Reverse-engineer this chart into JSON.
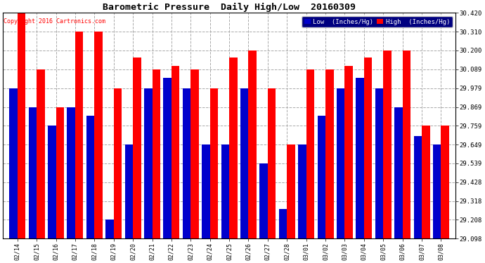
{
  "title": "Barometric Pressure  Daily High/Low  20160309",
  "copyright": "Copyright 2016 Cartronics.com",
  "label_low": "Low  (Inches/Hg)",
  "label_high": "High  (Inches/Hg)",
  "background_color": "#ffffff",
  "grid_color": "#aaaaaa",
  "ylim": [
    29.098,
    30.42
  ],
  "yticks": [
    29.098,
    29.208,
    29.318,
    29.428,
    29.539,
    29.649,
    29.759,
    29.869,
    29.979,
    30.089,
    30.2,
    30.31,
    30.42
  ],
  "dates": [
    "02/14",
    "02/15",
    "02/16",
    "02/17",
    "02/18",
    "02/19",
    "02/20",
    "02/21",
    "02/22",
    "02/23",
    "02/24",
    "02/25",
    "02/26",
    "02/27",
    "02/28",
    "03/01",
    "03/02",
    "03/03",
    "03/04",
    "03/05",
    "03/06",
    "03/07",
    "03/08"
  ],
  "high": [
    30.42,
    30.089,
    29.869,
    30.31,
    30.31,
    29.979,
    30.16,
    30.089,
    30.11,
    30.089,
    29.979,
    30.16,
    30.2,
    29.979,
    29.649,
    30.089,
    30.089,
    30.11,
    30.16,
    30.2,
    30.2,
    29.759,
    29.759
  ],
  "low": [
    29.979,
    29.869,
    29.759,
    29.869,
    29.819,
    29.208,
    29.649,
    29.979,
    30.04,
    29.979,
    29.649,
    29.649,
    29.979,
    29.539,
    29.27,
    29.649,
    29.819,
    29.979,
    30.04,
    29.979,
    29.869,
    29.7,
    29.649
  ],
  "bar_color_high": "#ff0000",
  "bar_color_low": "#0000cc",
  "bar_width": 0.42,
  "legend_bg": "#000080"
}
